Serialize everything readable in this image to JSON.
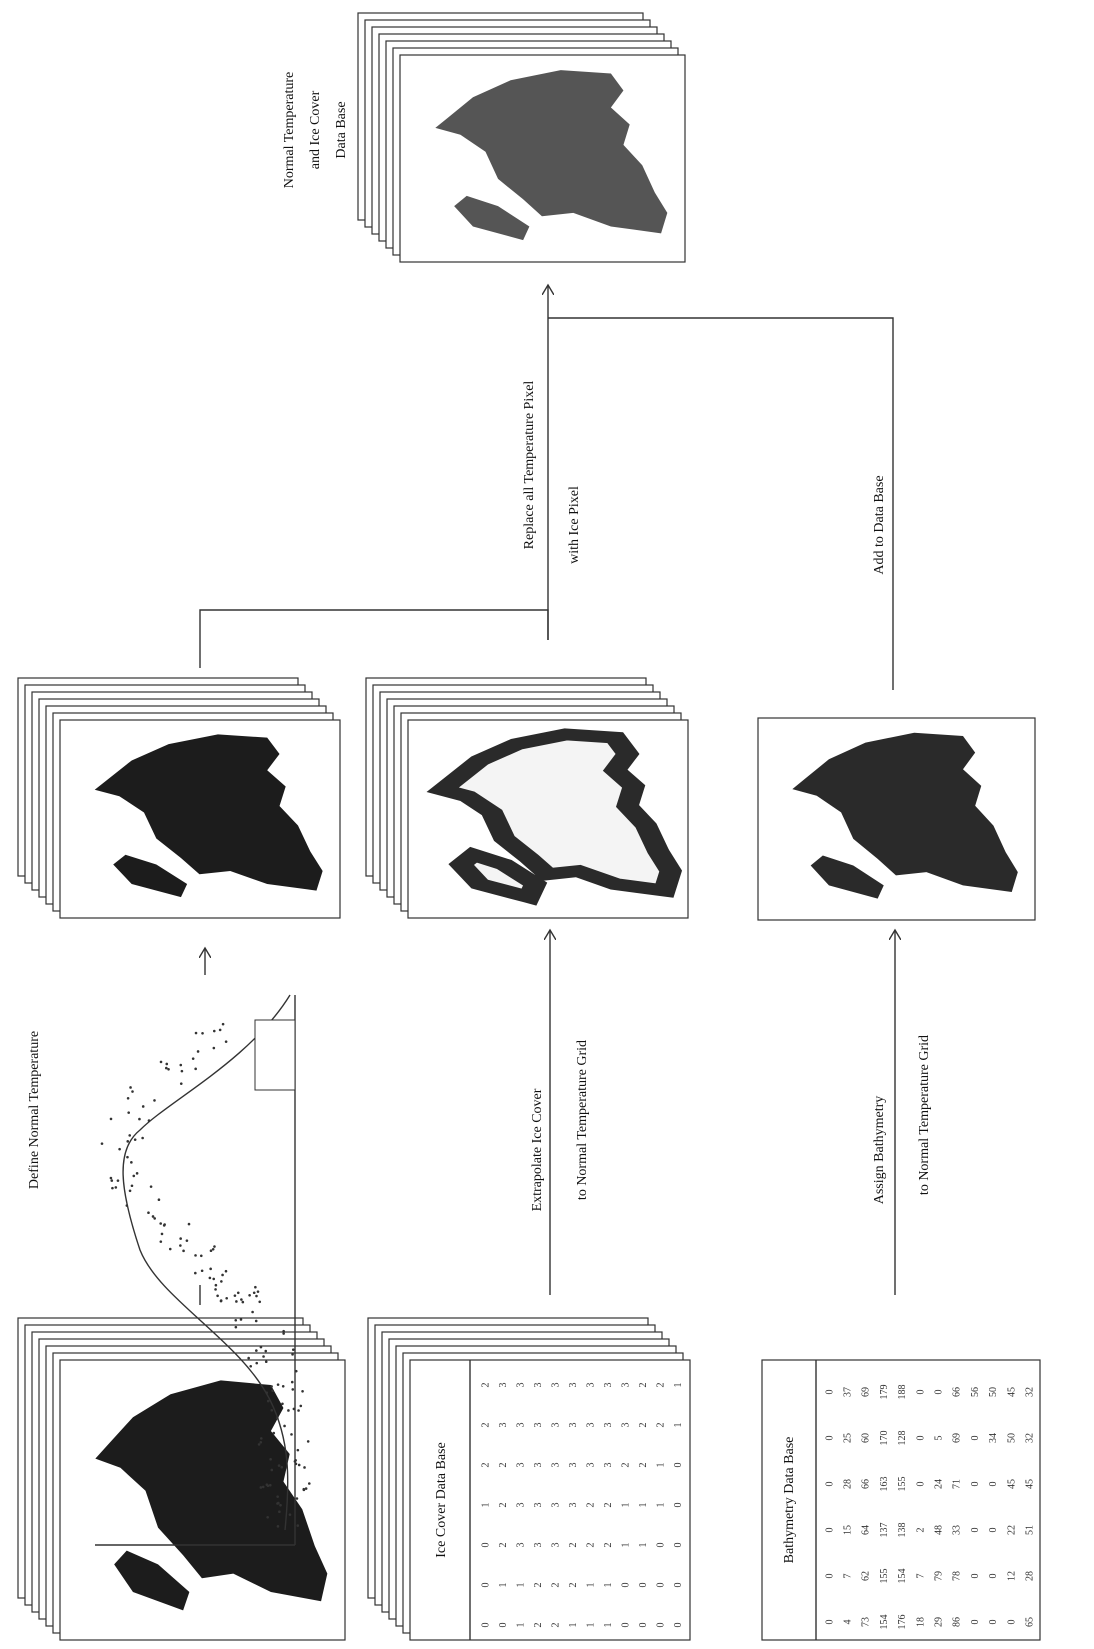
{
  "labels": {
    "result_title": [
      "Normal Temperature",
      "and Ice Cover",
      "Data Base"
    ],
    "replace": [
      "Replace all Temperature Pixel",
      "with Ice Pixel"
    ],
    "add": "Add to Data Base",
    "define": "Define Normal Temperature",
    "extrapolate": [
      "Extrapolate Ice Cover",
      "to Normal Temperature Grid"
    ],
    "assign": [
      "Assign Bathymetry",
      "to Normal Temperature Grid"
    ]
  },
  "ice_cover_table": {
    "title": "Ice Cover Data Base",
    "rows": [
      [
        0,
        0,
        0,
        1,
        2,
        2,
        2
      ],
      [
        0,
        1,
        2,
        2,
        2,
        3,
        3
      ],
      [
        1,
        1,
        3,
        3,
        3,
        3,
        3
      ],
      [
        2,
        2,
        3,
        3,
        3,
        3,
        3
      ],
      [
        2,
        2,
        3,
        3,
        3,
        3,
        3
      ],
      [
        1,
        2,
        2,
        3,
        3,
        3,
        3
      ],
      [
        1,
        1,
        2,
        2,
        3,
        3,
        3
      ],
      [
        1,
        1,
        2,
        2,
        3,
        3,
        3
      ],
      [
        0,
        0,
        1,
        1,
        2,
        3,
        3
      ],
      [
        0,
        0,
        1,
        1,
        2,
        2,
        2
      ],
      [
        0,
        0,
        0,
        1,
        1,
        2,
        2
      ],
      [
        0,
        0,
        0,
        0,
        0,
        1,
        1
      ]
    ]
  },
  "bathymetry_table": {
    "title": "Bathymetry Data Base",
    "rows": [
      [
        0,
        0,
        0,
        0,
        0,
        0
      ],
      [
        4,
        7,
        15,
        28,
        25,
        37
      ],
      [
        73,
        62,
        64,
        66,
        60,
        69
      ],
      [
        154,
        155,
        137,
        163,
        170,
        179
      ],
      [
        176,
        154,
        138,
        155,
        128,
        188
      ],
      [
        18,
        7,
        2,
        0,
        0,
        0
      ],
      [
        29,
        79,
        48,
        24,
        5,
        0
      ],
      [
        86,
        78,
        33,
        71,
        69,
        66
      ],
      [
        0,
        0,
        0,
        0,
        0,
        56
      ],
      [
        0,
        0,
        0,
        0,
        34,
        50
      ],
      [
        0,
        12,
        22,
        45,
        50,
        45
      ],
      [
        65,
        28,
        51,
        45,
        32,
        32
      ]
    ]
  }
}
